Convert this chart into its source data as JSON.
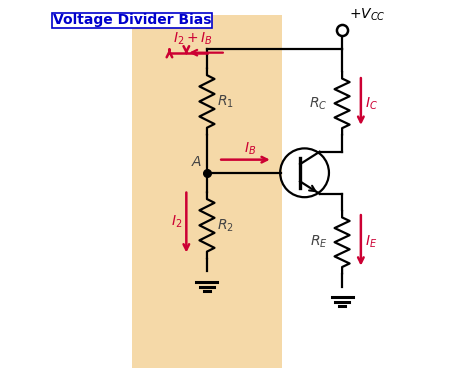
{
  "title": "Voltage Divider Bias",
  "bg_color": "#ffffff",
  "panel_color": "#f5d9a8",
  "line_color": "#000000",
  "red_color": "#cc0033",
  "blue_title_color": "#0000cc",
  "label_color": "#444444"
}
